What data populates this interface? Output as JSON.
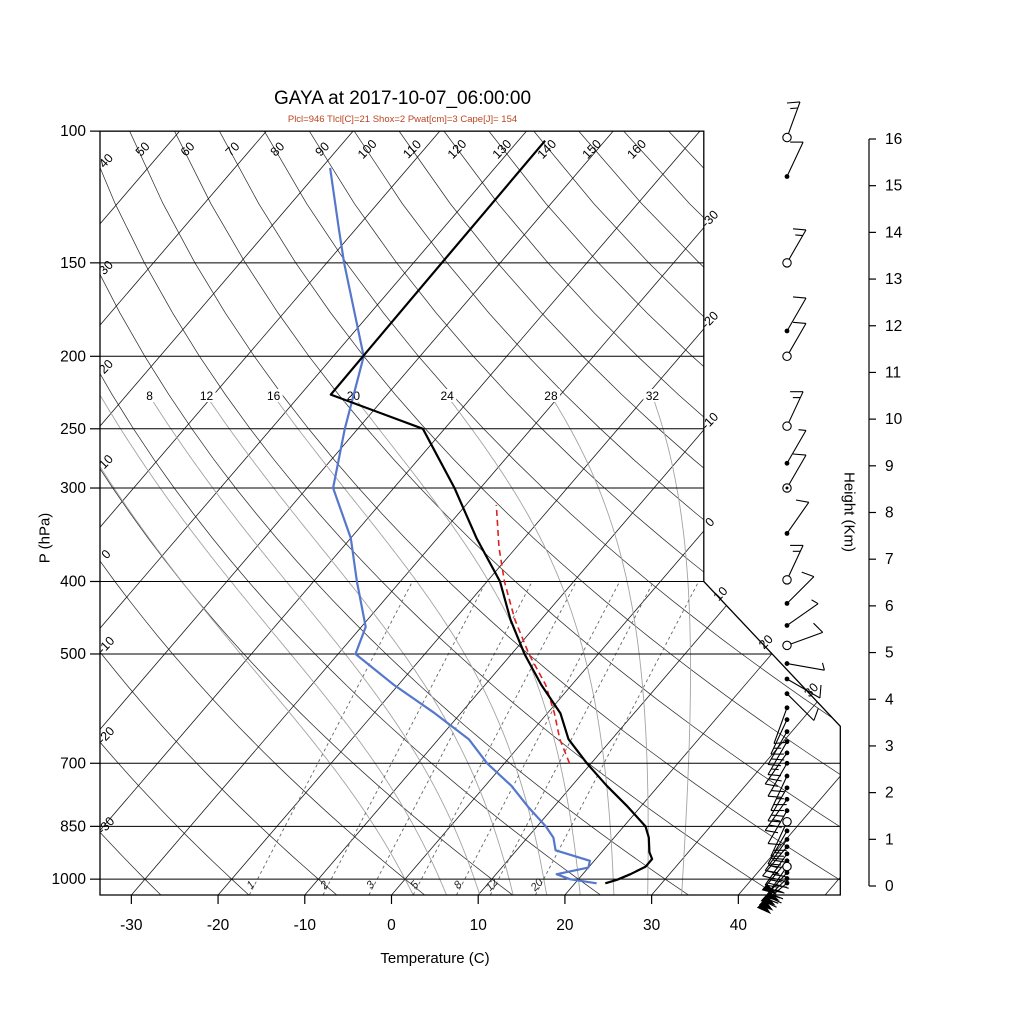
{
  "page": {
    "background": "#ffffff"
  },
  "chart_data": {
    "type": "skewt-logp",
    "title": "GAYA at 2017-10-07_06:00:00",
    "subtitle": "Plcl=946 Tlcl[C]=21 Shox=2 Pwat[cm]=3 Cape[J]= 154",
    "axes": {
      "pressure": {
        "title": "P (hPa)",
        "scale": "log",
        "range": [
          100,
          1050
        ],
        "ticks": [
          100,
          150,
          200,
          250,
          300,
          400,
          500,
          700,
          850,
          1000
        ]
      },
      "temperature": {
        "title": "Temperature (C)",
        "skew_deg": 45,
        "ticks": [
          -30,
          -20,
          -10,
          0,
          10,
          20,
          30,
          40
        ]
      },
      "height": {
        "title": "Height (Km)",
        "ticks": [
          0,
          1,
          2,
          3,
          4,
          5,
          6,
          7,
          8,
          9,
          10,
          11,
          12,
          13,
          14,
          15,
          16
        ]
      }
    },
    "background_lines": {
      "isotherms": {
        "min": -120,
        "max": 50,
        "step": 10,
        "right_edge_labels": [
          0,
          -10,
          -20,
          -30
        ],
        "diagonal_labels": [
          10,
          20,
          30
        ]
      },
      "dry_adiabats": {
        "values": [
          -30,
          -20,
          -10,
          0,
          10,
          20,
          30,
          40,
          50,
          60,
          70,
          80,
          90,
          100,
          110,
          120,
          130,
          140,
          150,
          160,
          170,
          180,
          190,
          200
        ],
        "left_edge_labels": [
          -30,
          -20,
          -10,
          0,
          10,
          20,
          30,
          40
        ],
        "top_edge_labels": [
          50,
          60,
          70,
          80,
          90,
          100,
          110,
          120,
          130,
          140,
          150,
          160
        ]
      },
      "moist_adiabats": {
        "values": [
          0,
          4,
          8,
          12,
          16,
          20,
          24,
          28,
          32
        ],
        "labeled": [
          8,
          12,
          16,
          20,
          24,
          28,
          32
        ],
        "label_pressure": 226
      },
      "mixing_ratio": {
        "values": [
          1,
          2,
          3,
          5,
          8,
          12,
          20
        ],
        "anchor_dewpoints": [
          -16.4,
          -7.9,
          -2.6,
          2.5,
          7.5,
          11.4,
          16.6
        ],
        "top_pressure": 400
      }
    },
    "sounding": {
      "temperature_c": [
        [
          1013,
          23.5
        ],
        [
          1002,
          24.5
        ],
        [
          985,
          25.5
        ],
        [
          962,
          26.5
        ],
        [
          940,
          26.5
        ],
        [
          920,
          25.5
        ],
        [
          880,
          24
        ],
        [
          850,
          22.5
        ],
        [
          800,
          18.5
        ],
        [
          750,
          14
        ],
        [
          700,
          9.5
        ],
        [
          650,
          5
        ],
        [
          600,
          1.5
        ],
        [
          550,
          -3.5
        ],
        [
          500,
          -8.5
        ],
        [
          450,
          -13.5
        ],
        [
          400,
          -18.5
        ],
        [
          350,
          -25.5
        ],
        [
          300,
          -33
        ],
        [
          250,
          -42.5
        ],
        [
          225,
          -56.5
        ],
        [
          190,
          -56.6
        ],
        [
          160,
          -56.7
        ],
        [
          130,
          -56.8
        ],
        [
          103,
          -56.9
        ]
      ],
      "dewpoint_c": [
        [
          1013,
          22.5
        ],
        [
          1000,
          19
        ],
        [
          985,
          17
        ],
        [
          965,
          20
        ],
        [
          945,
          19.5
        ],
        [
          915,
          14.5
        ],
        [
          880,
          13
        ],
        [
          850,
          11
        ],
        [
          800,
          7
        ],
        [
          750,
          3
        ],
        [
          700,
          -2
        ],
        [
          650,
          -6.5
        ],
        [
          600,
          -13
        ],
        [
          550,
          -20.5
        ],
        [
          500,
          -28
        ],
        [
          460,
          -29.5
        ],
        [
          400,
          -35
        ],
        [
          350,
          -40
        ],
        [
          300,
          -47
        ],
        [
          250,
          -51.5
        ],
        [
          200,
          -56.5
        ],
        [
          150,
          -68
        ],
        [
          135,
          -72
        ],
        [
          112,
          -79
        ]
      ],
      "parcel_c": [
        [
          700,
          7.5
        ],
        [
          650,
          4
        ],
        [
          600,
          0.8
        ],
        [
          550,
          -3
        ],
        [
          500,
          -8
        ],
        [
          450,
          -13
        ],
        [
          400,
          -18
        ],
        [
          360,
          -22
        ],
        [
          316,
          -26.5
        ]
      ]
    },
    "wind_barbs": [
      {
        "p": 102,
        "style": "circle",
        "staff": 20,
        "flag": 0,
        "full": 1,
        "half": 1
      },
      {
        "p": 115,
        "style": "dot",
        "staff": 25,
        "flag": 0,
        "full": 1,
        "half": 0
      },
      {
        "p": 150,
        "style": "circle",
        "staff": 30,
        "flag": 0,
        "full": 1,
        "half": 1
      },
      {
        "p": 185,
        "style": "dot",
        "staff": 30,
        "flag": 0,
        "full": 1,
        "half": 0
      },
      {
        "p": 200,
        "style": "circle",
        "staff": 30,
        "flag": 0,
        "full": 1,
        "half": 0
      },
      {
        "p": 248,
        "style": "circle",
        "staff": 25,
        "flag": 0,
        "full": 1,
        "half": 1
      },
      {
        "p": 278,
        "style": "dot",
        "staff": 30,
        "flag": 0,
        "full": 0,
        "half": 1
      },
      {
        "p": 300,
        "style": "circle-dot",
        "staff": 30,
        "flag": 0,
        "full": 1,
        "half": 0
      },
      {
        "p": 345,
        "style": "dot",
        "staff": 35,
        "flag": 0,
        "full": 1,
        "half": 0
      },
      {
        "p": 398,
        "style": "circle",
        "staff": 25,
        "flag": 0,
        "full": 1,
        "half": 1
      },
      {
        "p": 428,
        "style": "dot",
        "staff": 45,
        "flag": 0,
        "full": 1,
        "half": 0
      },
      {
        "p": 458,
        "style": "dot",
        "staff": 55,
        "flag": 0,
        "full": 0,
        "half": 1
      },
      {
        "p": 487,
        "style": "circle",
        "staff": 70,
        "flag": 0,
        "full": 1,
        "half": 0
      },
      {
        "p": 515,
        "style": "dot",
        "staff": 100,
        "flag": 0,
        "full": 0,
        "half": 1
      },
      {
        "p": 540,
        "style": "dot",
        "staff": 120,
        "flag": 0,
        "full": 1,
        "half": 0
      },
      {
        "p": 565,
        "style": "dot",
        "staff": 135,
        "flag": 0,
        "full": 1,
        "half": 0
      },
      {
        "p": 590,
        "style": "dot",
        "staff": 200,
        "flag": 0,
        "full": 1,
        "half": 0
      },
      {
        "p": 612,
        "style": "dot",
        "staff": 205,
        "flag": 0,
        "full": 1,
        "half": 1
      },
      {
        "p": 635,
        "style": "dot",
        "staff": 210,
        "flag": 0,
        "full": 2,
        "half": 0
      },
      {
        "p": 655,
        "style": "dot",
        "staff": 210,
        "flag": 0,
        "full": 1,
        "half": 1
      },
      {
        "p": 678,
        "style": "dot",
        "staff": 215,
        "flag": 0,
        "full": 2,
        "half": 0
      },
      {
        "p": 700,
        "style": "dot",
        "staff": 210,
        "flag": 0,
        "full": 2,
        "half": 0
      },
      {
        "p": 728,
        "style": "dot",
        "staff": 205,
        "flag": 0,
        "full": 2,
        "half": 1
      },
      {
        "p": 755,
        "style": "dot",
        "staff": 210,
        "flag": 0,
        "full": 2,
        "half": 0
      },
      {
        "p": 782,
        "style": "dot",
        "staff": 215,
        "flag": 0,
        "full": 2,
        "half": 1
      },
      {
        "p": 810,
        "style": "dot",
        "staff": 210,
        "flag": 0,
        "full": 1,
        "half": 0
      },
      {
        "p": 838,
        "style": "circle",
        "staff": 205,
        "flag": 0,
        "full": 2,
        "half": 0
      },
      {
        "p": 862,
        "style": "dot",
        "staff": 210,
        "flag": 0,
        "full": 2,
        "half": 1
      },
      {
        "p": 885,
        "style": "dot",
        "staff": 215,
        "flag": 0,
        "full": 3,
        "half": 0
      },
      {
        "p": 905,
        "style": "dot",
        "staff": 220,
        "flag": 0,
        "full": 2,
        "half": 1
      },
      {
        "p": 925,
        "style": "dot",
        "staff": 215,
        "flag": 0,
        "full": 3,
        "half": 0
      },
      {
        "p": 945,
        "style": "dot",
        "staff": 220,
        "flag": 1,
        "full": 2,
        "half": 0
      },
      {
        "p": 962,
        "style": "circle",
        "staff": 215,
        "flag": 1,
        "full": 2,
        "half": 0
      },
      {
        "p": 980,
        "style": "dot",
        "staff": 222,
        "flag": 1,
        "full": 3,
        "half": 0
      },
      {
        "p": 998,
        "style": "dot",
        "staff": 226,
        "flag": 1,
        "full": 2,
        "half": 1
      },
      {
        "p": 1012,
        "style": "dot",
        "staff": 230,
        "flag": 1,
        "full": 2,
        "half": 0
      }
    ],
    "colors": {
      "temperature": "#000000",
      "dewpoint": "#5577cc",
      "parcel": "#dd2222",
      "isotherm": "#1a1a1a",
      "dry_adiabat": "#1a1a1a",
      "moist_adiabat": "#a3a3a3",
      "mixing_ratio": "#666666",
      "subtitle": "#bb4422"
    }
  }
}
